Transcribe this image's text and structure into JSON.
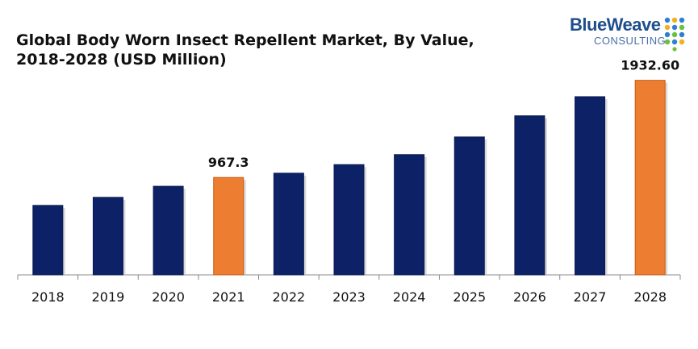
{
  "title_line1": "Global Body Worn Insect Repellent Market, By Value,",
  "title_line2": "2018-2028 (USD Million)",
  "logo": {
    "name": "BlueWeave",
    "sub": "CONSULTING"
  },
  "colors": {
    "bar": "#0d2266",
    "highlight": "#ed7d31",
    "axis": "#888888"
  },
  "chart_data": {
    "type": "bar",
    "title": "Global Body Worn Insect Repellent Market, By Value, 2018-2028 (USD Million)",
    "categories": [
      "2018",
      "2019",
      "2020",
      "2021",
      "2022",
      "2023",
      "2024",
      "2025",
      "2026",
      "2027",
      "2028"
    ],
    "values": [
      690,
      770,
      880,
      967.3,
      1010,
      1095,
      1195,
      1370,
      1580,
      1770,
      1932.6
    ],
    "highlighted": [
      "2021",
      "2028"
    ],
    "data_labels": {
      "2021": "967.3",
      "2028": "1932.60"
    },
    "xlabel": "",
    "ylabel": "",
    "ylim": [
      0,
      2050
    ],
    "grid": false,
    "legend": "none"
  }
}
